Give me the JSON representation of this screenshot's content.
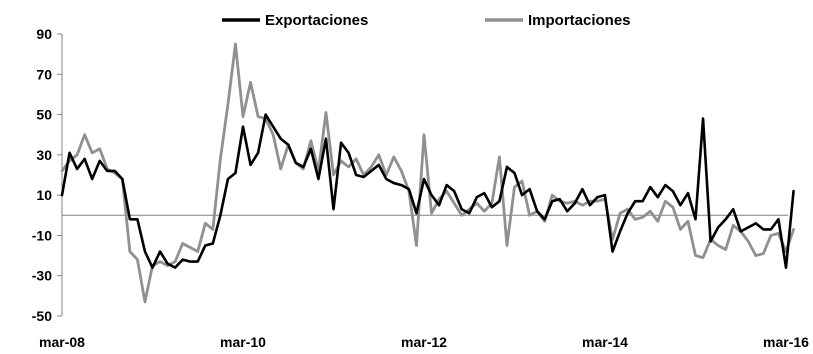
{
  "chart_data": {
    "type": "line",
    "title": "",
    "xlabel": "",
    "ylabel": "",
    "ylim": [
      -50,
      90
    ],
    "yticks": [
      -50,
      -30,
      -10,
      10,
      30,
      50,
      70,
      90
    ],
    "xticks": [
      {
        "index": 0,
        "label": "mar-08"
      },
      {
        "index": 24,
        "label": "mar-10"
      },
      {
        "index": 48,
        "label": "mar-12"
      },
      {
        "index": 72,
        "label": "mar-14"
      },
      {
        "index": 96,
        "label": "mar-16"
      }
    ],
    "legend": {
      "position": "top"
    },
    "zero_line": true,
    "grid": false,
    "x_start": "mar-08",
    "x_frequency": "monthly",
    "series": [
      {
        "name": "Exportaciones",
        "color": "#000000",
        "values": [
          10,
          31,
          23,
          28,
          18,
          27,
          22,
          22,
          18,
          -2,
          -2,
          -18,
          -26,
          -18,
          -24,
          -26,
          -22,
          -23,
          -23,
          -15,
          -14,
          0,
          18,
          21,
          44,
          25,
          31,
          50,
          44,
          38,
          35,
          26,
          24,
          33,
          18,
          38,
          3,
          36,
          31,
          20,
          19,
          22,
          25,
          18,
          16,
          15,
          13,
          1,
          18,
          10,
          5,
          15,
          12,
          3,
          1,
          9,
          11,
          4,
          7,
          24,
          21,
          10,
          13,
          2,
          -2,
          7,
          8,
          2,
          6,
          13,
          5,
          9,
          10,
          -18,
          -8,
          1,
          7,
          7,
          14,
          9,
          15,
          12,
          5,
          11,
          -2,
          48,
          -13,
          -6,
          -2,
          3,
          -8,
          -6,
          -4,
          -7,
          -7,
          -2,
          -26,
          12
        ]
      },
      {
        "name": "Importaciones",
        "color": "#909090",
        "values": [
          22,
          27,
          30,
          40,
          31,
          33,
          23,
          21,
          18,
          -18,
          -22,
          -43,
          -25,
          -23,
          -25,
          -23,
          -14,
          -16,
          -18,
          -4,
          -7,
          28,
          55,
          85,
          49,
          66,
          49,
          48,
          40,
          23,
          35,
          26,
          23,
          37,
          22,
          51,
          20,
          27,
          24,
          28,
          20,
          24,
          30,
          20,
          29,
          22,
          12,
          -15,
          40,
          1,
          8,
          12,
          6,
          0,
          3,
          6,
          2,
          6,
          29,
          -15,
          14,
          17,
          0,
          2,
          -3,
          10,
          7,
          6,
          7,
          5,
          7,
          7,
          8,
          -12,
          1,
          3,
          -2,
          -1,
          2,
          -3,
          7,
          4,
          -7,
          -3,
          -20,
          -21,
          -12,
          -15,
          -17,
          -5,
          -8,
          -13,
          -20,
          -19,
          -10,
          -9,
          -18,
          -7
        ]
      }
    ]
  }
}
